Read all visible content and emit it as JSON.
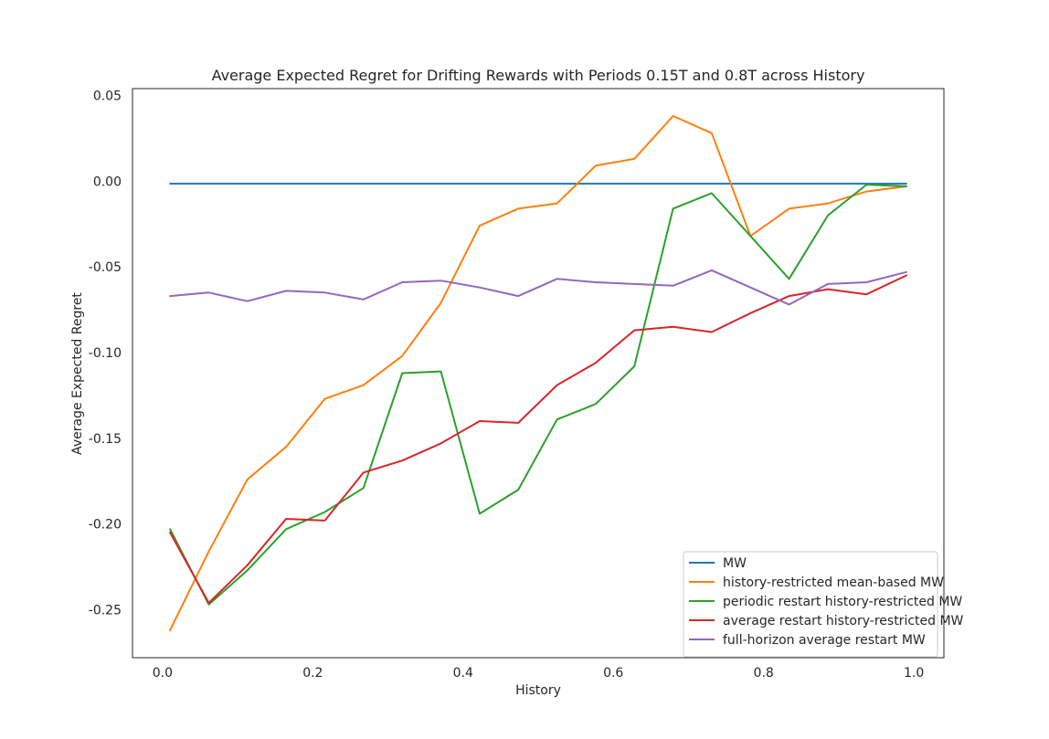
{
  "chart_data": {
    "type": "line",
    "title": "Average Expected Regret for Drifting Rewards with Periods 0.15T and 0.8T across History",
    "xlabel": "History",
    "ylabel": "Average Expected Regret",
    "xlim": [
      -0.04,
      1.04
    ],
    "ylim": [
      -0.278,
      0.054
    ],
    "xticks": [
      0.0,
      0.2,
      0.4,
      0.6,
      0.8,
      1.0
    ],
    "xtick_labels": [
      "0.0",
      "0.2",
      "0.4",
      "0.6",
      "0.8",
      "1.0"
    ],
    "yticks": [
      0.05,
      0.0,
      -0.05,
      -0.1,
      -0.15,
      -0.2,
      -0.25
    ],
    "ytick_labels": [
      "0.05",
      "0.00",
      "-0.05",
      "-0.10",
      "-0.15",
      "-0.20",
      "-0.25"
    ],
    "grid": false,
    "legend_position": "bottom-right",
    "x": [
      0.01,
      0.0615,
      0.113,
      0.1645,
      0.216,
      0.2675,
      0.319,
      0.3705,
      0.422,
      0.4735,
      0.525,
      0.5765,
      0.628,
      0.6795,
      0.731,
      0.7825,
      0.834,
      0.8855,
      0.937,
      0.99
    ],
    "series": [
      {
        "name": "MW",
        "color": "#1f77b4",
        "values": [
          -0.0015,
          -0.0015,
          -0.0015,
          -0.0015,
          -0.0015,
          -0.0015,
          -0.0015,
          -0.0015,
          -0.0015,
          -0.0015,
          -0.0015,
          -0.0015,
          -0.0015,
          -0.0015,
          -0.0015,
          -0.0015,
          -0.0015,
          -0.0015,
          -0.0015,
          -0.0015
        ]
      },
      {
        "name": "history-restricted mean-based MW",
        "color": "#ff7f0e",
        "values": [
          -0.262,
          -0.216,
          -0.174,
          -0.155,
          -0.127,
          -0.119,
          -0.102,
          -0.071,
          -0.026,
          -0.016,
          -0.013,
          0.009,
          0.013,
          0.038,
          0.028,
          -0.032,
          -0.016,
          -0.013,
          -0.006,
          -0.003
        ]
      },
      {
        "name": "periodic restart history-restricted MW",
        "color": "#2ca02c",
        "values": [
          -0.203,
          -0.247,
          -0.227,
          -0.203,
          -0.193,
          -0.179,
          -0.112,
          -0.111,
          -0.194,
          -0.18,
          -0.139,
          -0.13,
          -0.108,
          -0.016,
          -0.007,
          -0.032,
          -0.057,
          -0.02,
          -0.002,
          -0.003
        ]
      },
      {
        "name": "average restart history-restricted MW",
        "color": "#d62728",
        "values": [
          -0.205,
          -0.246,
          -0.224,
          -0.197,
          -0.198,
          -0.17,
          -0.163,
          -0.153,
          -0.14,
          -0.141,
          -0.119,
          -0.106,
          -0.087,
          -0.085,
          -0.088,
          -0.077,
          -0.067,
          -0.063,
          -0.066,
          -0.055
        ]
      },
      {
        "name": "full-horizon average restart MW",
        "color": "#9467bd",
        "values": [
          -0.067,
          -0.065,
          -0.07,
          -0.064,
          -0.065,
          -0.069,
          -0.059,
          -0.058,
          -0.062,
          -0.067,
          -0.057,
          -0.059,
          -0.06,
          -0.061,
          -0.052,
          -0.062,
          -0.072,
          -0.06,
          -0.059,
          -0.053
        ]
      }
    ]
  }
}
